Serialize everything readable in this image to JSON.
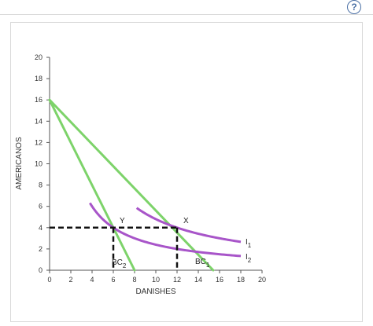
{
  "help": {
    "label": "?"
  },
  "chart_data": {
    "type": "line",
    "xlabel": "DANISHES",
    "ylabel": "AMERICANOS",
    "xlim": [
      0,
      20
    ],
    "ylim": [
      0,
      20
    ],
    "x_ticks": [
      0,
      2,
      4,
      6,
      8,
      10,
      12,
      14,
      16,
      18,
      20
    ],
    "y_ticks": [
      0,
      2,
      4,
      6,
      8,
      10,
      12,
      14,
      16,
      18,
      20
    ],
    "colors": {
      "budget": "#7dd36a",
      "indifference": "#a855c9",
      "guide": "#111111"
    },
    "budget_lines": [
      {
        "label": "BC",
        "sub": "1",
        "points": [
          [
            0,
            16
          ],
          [
            15.4,
            0
          ]
        ]
      },
      {
        "label": "BC",
        "sub": "2",
        "points": [
          [
            0,
            16
          ],
          [
            8,
            0
          ]
        ]
      }
    ],
    "indifference_curves": [
      {
        "label": "I",
        "sub": "1",
        "k": 48,
        "x_range": [
          8.2,
          18
        ]
      },
      {
        "label": "I",
        "sub": "2",
        "k": 24,
        "x_range": [
          3.8,
          18
        ]
      }
    ],
    "points": [
      {
        "label": "Y",
        "x": 6,
        "y": 4
      },
      {
        "label": "X",
        "x": 12,
        "y": 4
      }
    ]
  }
}
